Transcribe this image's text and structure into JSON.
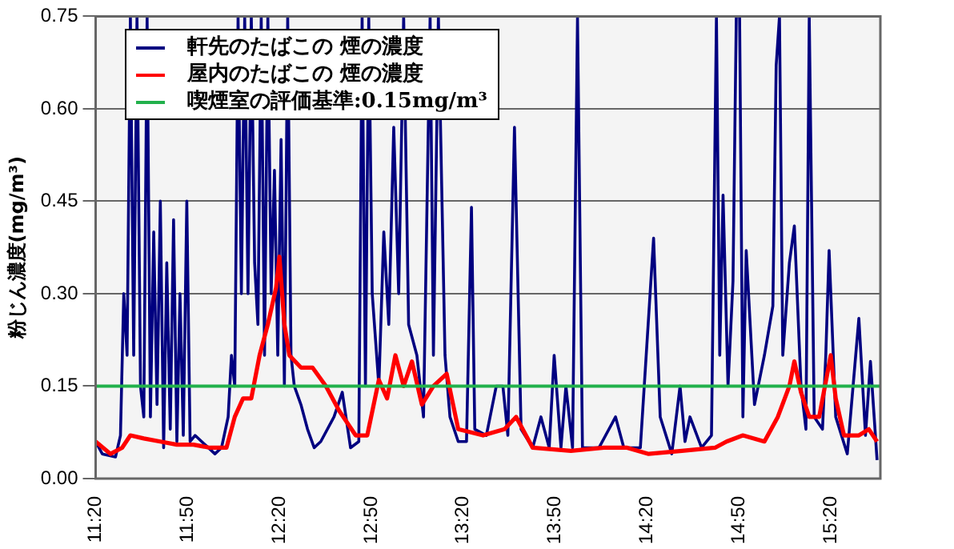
{
  "chart_data": {
    "type": "line",
    "ylabel": "粉じん濃度(mg/m³)",
    "xlim": [
      11.333,
      15.603
    ],
    "ylim": [
      0,
      0.75
    ],
    "xticks": [
      {
        "value": 11.333,
        "label": "11:20"
      },
      {
        "value": 11.833,
        "label": "11:50"
      },
      {
        "value": 12.333,
        "label": "12:20"
      },
      {
        "value": 12.833,
        "label": "12:50"
      },
      {
        "value": 13.333,
        "label": "13:20"
      },
      {
        "value": 13.833,
        "label": "13:50"
      },
      {
        "value": 14.333,
        "label": "14:20"
      },
      {
        "value": 14.833,
        "label": "14:50"
      },
      {
        "value": 15.333,
        "label": "15:20"
      }
    ],
    "yticks": [
      {
        "value": 0,
        "label": "0.00"
      },
      {
        "value": 0.15,
        "label": "0.15"
      },
      {
        "value": 0.3,
        "label": "0.30"
      },
      {
        "value": 0.45,
        "label": "0.45"
      },
      {
        "value": 0.6,
        "label": "0.60"
      },
      {
        "value": 0.75,
        "label": "0.75"
      }
    ],
    "grid": "y",
    "legend": "top left",
    "marker": "none",
    "line_style": "solid",
    "series": [
      {
        "name": "軒先のたばこの 煙の濃度",
        "color": "#000080",
        "x": [
          11.333,
          11.369,
          11.441,
          11.468,
          11.486,
          11.504,
          11.522,
          11.54,
          11.558,
          11.577,
          11.595,
          11.613,
          11.631,
          11.649,
          11.667,
          11.685,
          11.703,
          11.72,
          11.739,
          11.757,
          11.775,
          11.792,
          11.81,
          11.829,
          11.847,
          11.874,
          11.91,
          11.946,
          11.982,
          12.018,
          12.054,
          12.072,
          12.09,
          12.108,
          12.126,
          12.144,
          12.162,
          12.18,
          12.198,
          12.216,
          12.234,
          12.252,
          12.27,
          12.288,
          12.306,
          12.324,
          12.342,
          12.36,
          12.378,
          12.396,
          12.414,
          12.45,
          12.486,
          12.522,
          12.558,
          12.63,
          12.675,
          12.72,
          12.765,
          12.783,
          12.801,
          12.819,
          12.838,
          12.874,
          12.901,
          12.928,
          12.955,
          12.982,
          13.009,
          13.036,
          13.081,
          13.117,
          13.153,
          13.171,
          13.198,
          13.234,
          13.261,
          13.306,
          13.351,
          13.378,
          13.396,
          13.459,
          13.513,
          13.549,
          13.576,
          13.612,
          13.648,
          13.711,
          13.756,
          13.801,
          13.828,
          13.865,
          13.892,
          13.928,
          13.955,
          13.982,
          14.072,
          14.162,
          14.207,
          14.297,
          14.369,
          14.405,
          14.468,
          14.513,
          14.54,
          14.567,
          14.63,
          14.684,
          14.711,
          14.729,
          14.747,
          14.774,
          14.801,
          14.819,
          14.837,
          14.855,
          14.873,
          14.918,
          14.972,
          15.018,
          15.036,
          15.054,
          15.072,
          15.108,
          15.135,
          15.171,
          15.198,
          15.216,
          15.243,
          15.288,
          15.306,
          15.324,
          15.36,
          15.423,
          15.486,
          15.522,
          15.549,
          15.585
        ],
        "values": [
          0.06,
          0.04,
          0.035,
          0.07,
          0.3,
          0.2,
          0.75,
          0.2,
          0.75,
          0.15,
          0.1,
          0.75,
          0.1,
          0.4,
          0.12,
          0.45,
          0.05,
          0.35,
          0.08,
          0.42,
          0.06,
          0.3,
          0.07,
          0.45,
          0.06,
          0.07,
          0.06,
          0.05,
          0.04,
          0.05,
          0.1,
          0.2,
          0.15,
          0.75,
          0.3,
          0.75,
          0.3,
          0.75,
          0.35,
          0.25,
          0.75,
          0.2,
          0.75,
          0.3,
          0.5,
          0.2,
          0.55,
          0.15,
          0.75,
          0.2,
          0.15,
          0.12,
          0.08,
          0.05,
          0.06,
          0.1,
          0.14,
          0.05,
          0.06,
          0.75,
          0.15,
          0.75,
          0.3,
          0.15,
          0.4,
          0.25,
          0.57,
          0.3,
          0.75,
          0.25,
          0.2,
          0.1,
          0.75,
          0.2,
          0.75,
          0.2,
          0.1,
          0.06,
          0.06,
          0.44,
          0.08,
          0.07,
          0.15,
          0.15,
          0.07,
          0.57,
          0.08,
          0.05,
          0.1,
          0.05,
          0.2,
          0.05,
          0.15,
          0.05,
          0.75,
          0.05,
          0.05,
          0.1,
          0.05,
          0.05,
          0.39,
          0.1,
          0.04,
          0.15,
          0.06,
          0.1,
          0.05,
          0.07,
          0.75,
          0.2,
          0.46,
          0.15,
          0.32,
          0.75,
          0.75,
          0.1,
          0.37,
          0.12,
          0.2,
          0.28,
          0.67,
          0.75,
          0.2,
          0.35,
          0.41,
          0.15,
          0.08,
          0.75,
          0.1,
          0.08,
          0.2,
          0.37,
          0.1,
          0.04,
          0.26,
          0.07,
          0.19,
          0.03
        ]
      },
      {
        "name": "屋内のたばこの 煙の濃度",
        "color": "#ff0000",
        "x": [
          11.333,
          11.414,
          11.477,
          11.522,
          11.595,
          11.685,
          11.775,
          11.865,
          11.955,
          12.045,
          12.09,
          12.135,
          12.18,
          12.225,
          12.27,
          12.315,
          12.333,
          12.36,
          12.387,
          12.45,
          12.513,
          12.586,
          12.658,
          12.748,
          12.811,
          12.874,
          12.919,
          12.964,
          13.009,
          13.054,
          13.108,
          13.171,
          13.243,
          13.306,
          13.441,
          13.558,
          13.621,
          13.711,
          13.919,
          14.099,
          14.225,
          14.342,
          14.523,
          14.703,
          14.766,
          14.855,
          14.972,
          15.045,
          15.108,
          15.135,
          15.171,
          15.216,
          15.27,
          15.333,
          15.36,
          15.405,
          15.486,
          15.54,
          15.585
        ],
        "values": [
          0.06,
          0.04,
          0.05,
          0.07,
          0.065,
          0.06,
          0.055,
          0.055,
          0.05,
          0.05,
          0.1,
          0.13,
          0.13,
          0.2,
          0.25,
          0.31,
          0.36,
          0.25,
          0.2,
          0.18,
          0.18,
          0.15,
          0.11,
          0.07,
          0.07,
          0.16,
          0.13,
          0.2,
          0.15,
          0.19,
          0.12,
          0.15,
          0.17,
          0.08,
          0.07,
          0.08,
          0.1,
          0.05,
          0.045,
          0.05,
          0.05,
          0.04,
          0.045,
          0.05,
          0.06,
          0.07,
          0.06,
          0.1,
          0.15,
          0.19,
          0.14,
          0.1,
          0.1,
          0.2,
          0.13,
          0.07,
          0.07,
          0.08,
          0.06
        ]
      }
    ],
    "ref_lines": [
      {
        "axis": "y",
        "value": 0.15,
        "label": "喫煙室の評価基準:0.15mg/m³",
        "color": "#22b14c"
      }
    ]
  }
}
